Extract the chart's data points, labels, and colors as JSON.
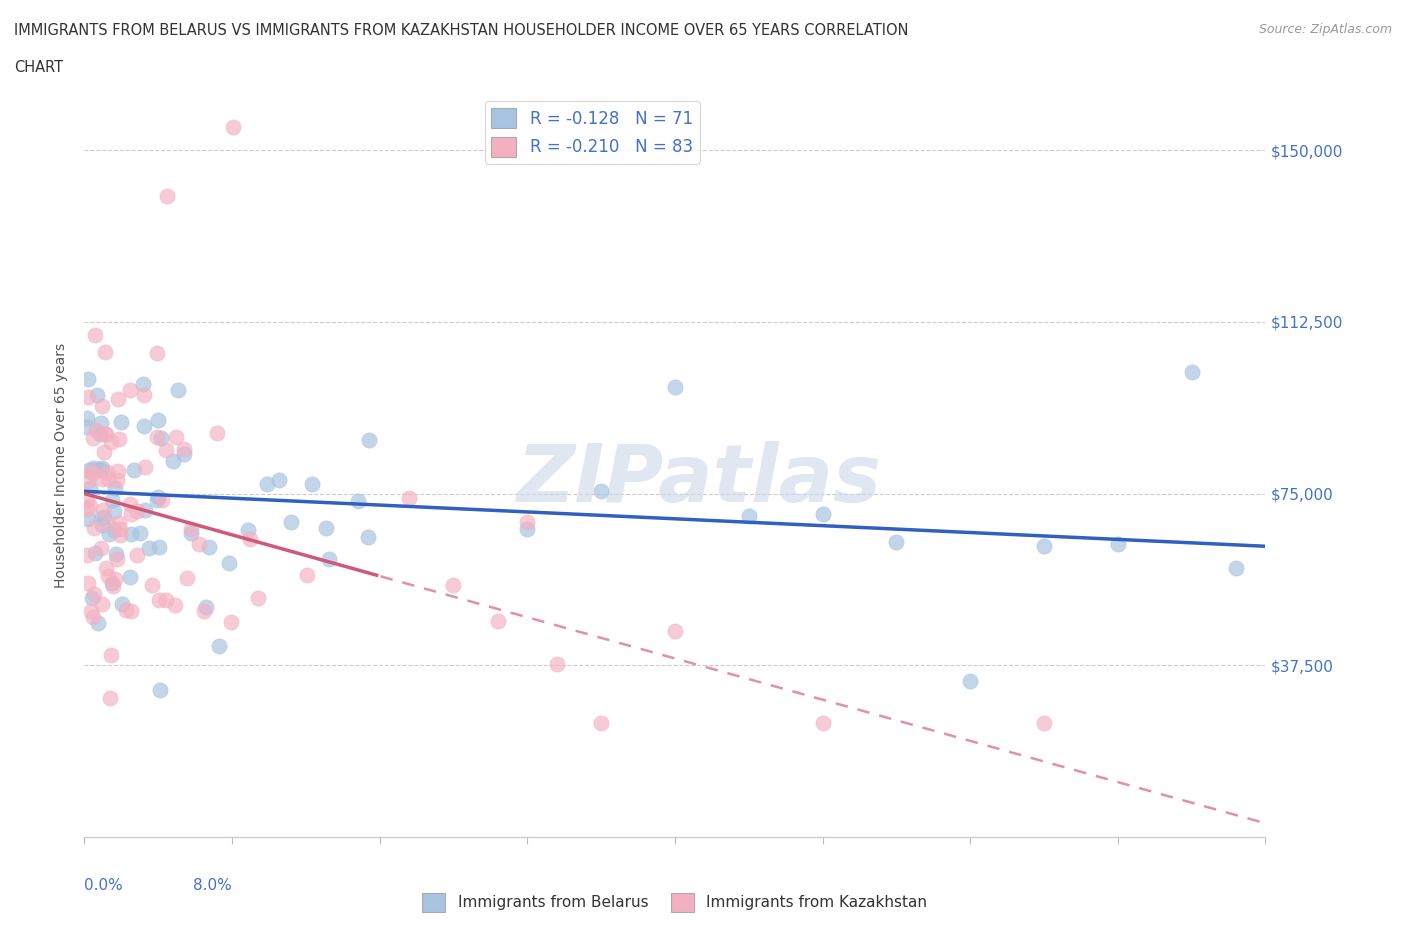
{
  "title_line1": "IMMIGRANTS FROM BELARUS VS IMMIGRANTS FROM KAZAKHSTAN HOUSEHOLDER INCOME OVER 65 YEARS CORRELATION",
  "title_line2": "CHART",
  "source": "Source: ZipAtlas.com",
  "ylabel": "Householder Income Over 65 years",
  "xlim": [
    0.0,
    8.0
  ],
  "ylim": [
    0,
    162500
  ],
  "watermark": "ZIPatlas",
  "legend_belarus_R": -0.128,
  "legend_belarus_N": 71,
  "legend_kazakhstan_R": -0.21,
  "legend_kazakhstan_N": 83,
  "belarus_scatter_color": "#a8c4e0",
  "kazakhstan_scatter_color": "#f4b0c0",
  "trend_belarus_color": "#3060c0",
  "trend_kazakhstan_solid_color": "#d05878",
  "trend_kazakhstan_dash_color": "#e090a8",
  "ytick_vals": [
    0,
    37500,
    75000,
    112500,
    150000
  ],
  "ytick_labels_right": [
    "",
    "$37,500",
    "$75,000",
    "$112,500",
    "$150,000"
  ],
  "bel_intercept": 75000,
  "bel_slope": -1700,
  "kaz_intercept": 76000,
  "kaz_slope": -9500,
  "kaz_solid_end_x": 2.0
}
